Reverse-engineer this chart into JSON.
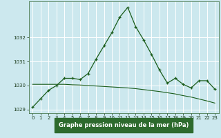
{
  "title": "Graphe pression niveau de la mer (hPa)",
  "background_color": "#cce8ee",
  "grid_color": "#ffffff",
  "line_color": "#1a5c1a",
  "label_bg_color": "#2d6a2d",
  "label_text_color": "#ffffff",
  "hours": [
    0,
    1,
    2,
    3,
    4,
    5,
    6,
    7,
    8,
    9,
    10,
    11,
    12,
    13,
    14,
    15,
    16,
    17,
    18,
    19,
    20,
    21,
    22,
    23
  ],
  "pressure": [
    1029.1,
    1029.45,
    1029.8,
    1030.0,
    1030.3,
    1030.3,
    1030.25,
    1030.5,
    1031.1,
    1031.65,
    1032.2,
    1032.85,
    1033.25,
    1032.45,
    1031.9,
    1031.3,
    1030.65,
    1030.1,
    1030.3,
    1030.05,
    1029.9,
    1030.2,
    1030.2,
    1029.85
  ],
  "pressure2": [
    1030.05,
    1030.05,
    1030.05,
    1030.05,
    1030.05,
    1030.03,
    1030.02,
    1030.0,
    1029.98,
    1029.96,
    1029.94,
    1029.92,
    1029.9,
    1029.87,
    1029.83,
    1029.79,
    1029.75,
    1029.7,
    1029.65,
    1029.58,
    1029.52,
    1029.44,
    1029.36,
    1029.27
  ],
  "ylim": [
    1028.85,
    1033.5
  ],
  "yticks": [
    1029,
    1030,
    1031,
    1032
  ],
  "xlim": [
    -0.5,
    23.5
  ]
}
